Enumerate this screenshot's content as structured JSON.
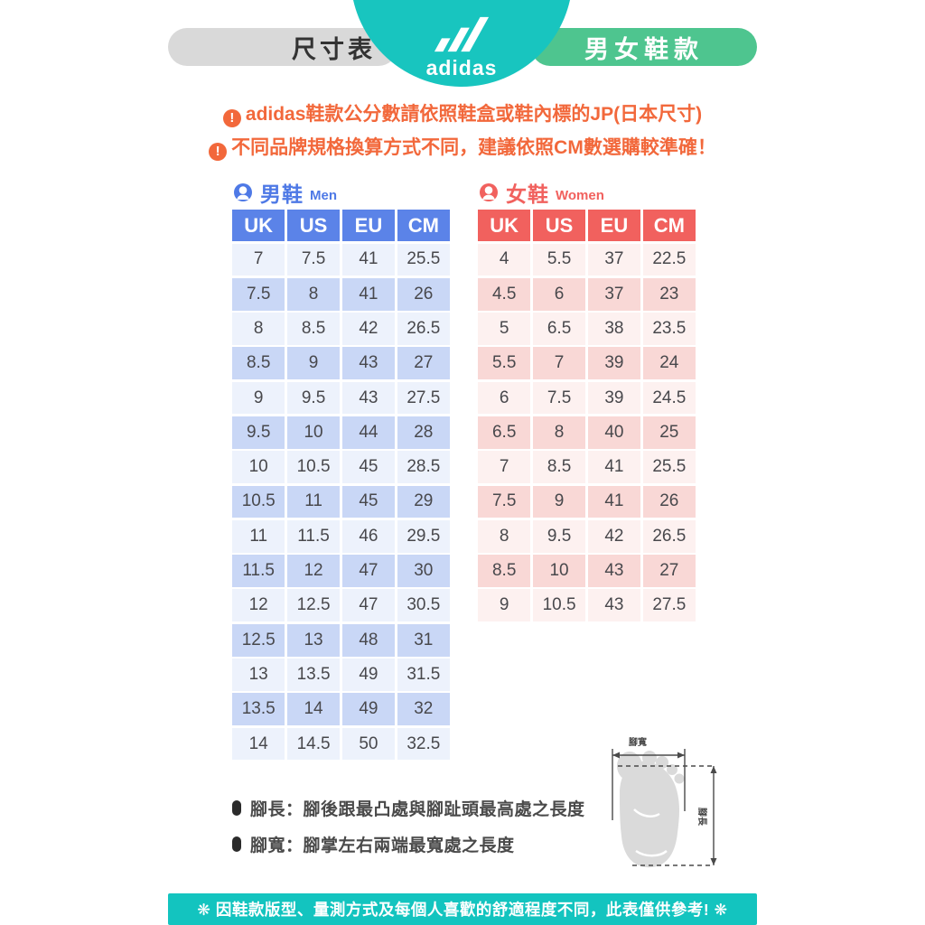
{
  "header": {
    "left_pill_label": "尺寸表",
    "brand": "adidas",
    "right_pill_label": "男女鞋款"
  },
  "notices": {
    "icon_glyph": "!",
    "lines": [
      "adidas鞋款公分數請依照鞋盒或鞋內標的JP(日本尺寸)",
      "不同品牌規格換算方式不同，建議依照CM數選購較準確！"
    ]
  },
  "men_table": {
    "title_zh": "男鞋",
    "title_en": "Men",
    "columns": [
      "UK",
      "US",
      "EU",
      "CM"
    ],
    "rows": [
      [
        "7",
        "7.5",
        "41",
        "25.5"
      ],
      [
        "7.5",
        "8",
        "41",
        "26"
      ],
      [
        "8",
        "8.5",
        "42",
        "26.5"
      ],
      [
        "8.5",
        "9",
        "43",
        "27"
      ],
      [
        "9",
        "9.5",
        "43",
        "27.5"
      ],
      [
        "9.5",
        "10",
        "44",
        "28"
      ],
      [
        "10",
        "10.5",
        "45",
        "28.5"
      ],
      [
        "10.5",
        "11",
        "45",
        "29"
      ],
      [
        "11",
        "11.5",
        "46",
        "29.5"
      ],
      [
        "11.5",
        "12",
        "47",
        "30"
      ],
      [
        "12",
        "12.5",
        "47",
        "30.5"
      ],
      [
        "12.5",
        "13",
        "48",
        "31"
      ],
      [
        "13",
        "13.5",
        "49",
        "31.5"
      ],
      [
        "13.5",
        "14",
        "49",
        "32"
      ],
      [
        "14",
        "14.5",
        "50",
        "32.5"
      ]
    ]
  },
  "women_table": {
    "title_zh": "女鞋",
    "title_en": "Women",
    "columns": [
      "UK",
      "US",
      "EU",
      "CM"
    ],
    "rows": [
      [
        "4",
        "5.5",
        "37",
        "22.5"
      ],
      [
        "4.5",
        "6",
        "37",
        "23"
      ],
      [
        "5",
        "6.5",
        "38",
        "23.5"
      ],
      [
        "5.5",
        "7",
        "39",
        "24"
      ],
      [
        "6",
        "7.5",
        "39",
        "24.5"
      ],
      [
        "6.5",
        "8",
        "40",
        "25"
      ],
      [
        "7",
        "8.5",
        "41",
        "25.5"
      ],
      [
        "7.5",
        "9",
        "41",
        "26"
      ],
      [
        "8",
        "9.5",
        "42",
        "26.5"
      ],
      [
        "8.5",
        "10",
        "43",
        "27"
      ],
      [
        "9",
        "10.5",
        "43",
        "27.5"
      ]
    ]
  },
  "footnotes": [
    "腳長：腳後跟最凸處與腳趾頭最高處之長度",
    "腳寬：腳掌左右兩端最寬處之長度"
  ],
  "foot_diagram": {
    "width_label": "腳寬",
    "length_label": "腳長"
  },
  "footer_note": "❋ 因鞋款版型、量測方式及每個人喜歡的舒適程度不同，此表僅供參考! ❋",
  "colors": {
    "brand_teal": "#18c5bf",
    "header_green": "#4ec58f",
    "header_gray": "#d9d9d9",
    "notice_orange": "#f2683b",
    "men_blue": "#5b83e8",
    "men_row_light": "#edf2fc",
    "men_row_dark": "#c9d7f6",
    "women_coral": "#f1615e",
    "women_row_light": "#fdf1f0",
    "women_row_dark": "#f9d8d6",
    "footer_teal": "#13c4bf"
  }
}
